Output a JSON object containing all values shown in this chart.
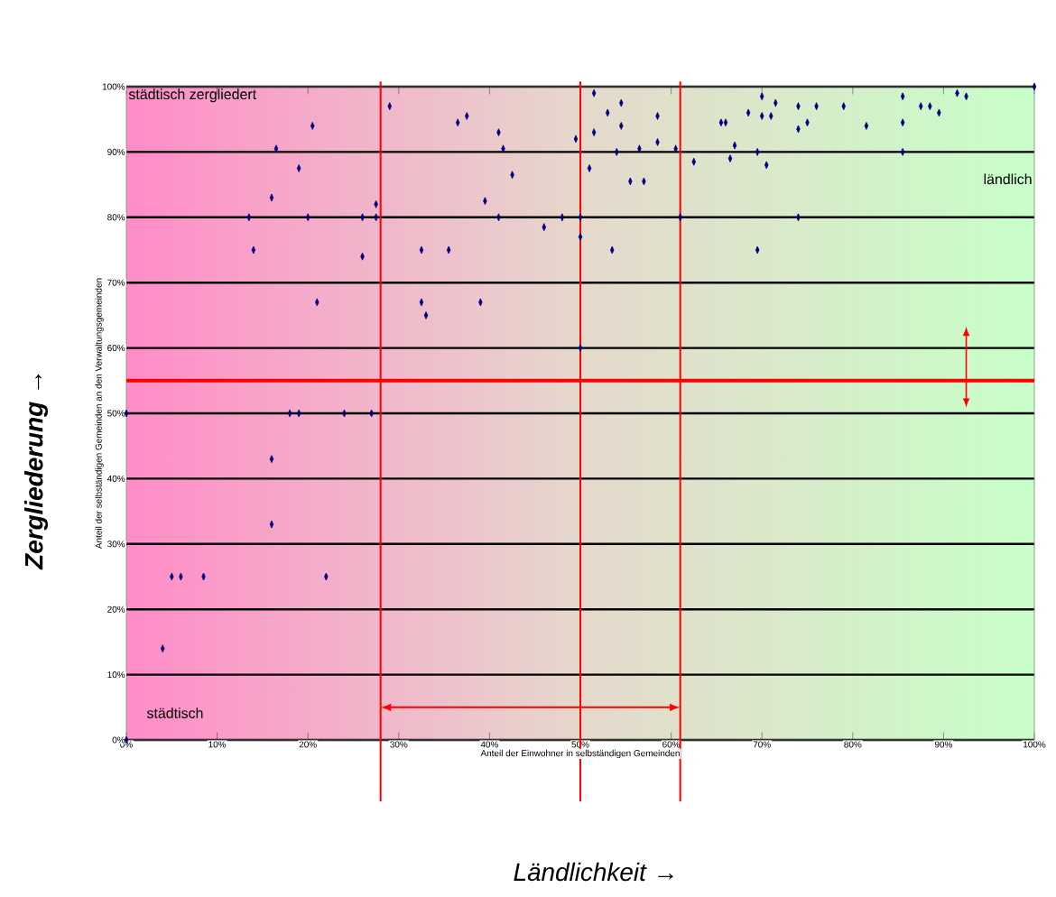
{
  "chart_data": {
    "type": "scatter",
    "xlabel": "Anteil der Einwohner in selbständigen Gemeinden",
    "ylabel": "Anteil der selbständigen Gemeinden an den Verwaltungsgemeinden",
    "annotations": [
      "städtisch zergliedert",
      "ländlich",
      "städtisch",
      "Zergliederung →",
      "Ländlichkeit →"
    ],
    "xlim": [
      0,
      100
    ],
    "ylim": [
      0,
      100
    ],
    "xticks": [
      {
        "value": 0,
        "label": "0%"
      },
      {
        "value": 10,
        "label": "10%"
      },
      {
        "value": 20,
        "label": "20%"
      },
      {
        "value": 30,
        "label": "30%"
      },
      {
        "value": 40,
        "label": "40%"
      },
      {
        "value": 50,
        "label": "50%"
      },
      {
        "value": 60,
        "label": "60%"
      },
      {
        "value": 70,
        "label": "70%"
      },
      {
        "value": 80,
        "label": "80%"
      },
      {
        "value": 90,
        "label": "90%"
      },
      {
        "value": 100,
        "label": "100%"
      }
    ],
    "yticks": [
      {
        "value": 0,
        "label": "0%"
      },
      {
        "value": 10,
        "label": "10%"
      },
      {
        "value": 20,
        "label": "20%"
      },
      {
        "value": 30,
        "label": "30%"
      },
      {
        "value": 40,
        "label": "40%"
      },
      {
        "value": 50,
        "label": "50%"
      },
      {
        "value": 60,
        "label": "60%"
      },
      {
        "value": 70,
        "label": "70%"
      },
      {
        "value": 80,
        "label": "80%"
      },
      {
        "value": 90,
        "label": "90%"
      },
      {
        "value": 100,
        "label": "100%"
      }
    ],
    "grid": "y",
    "marker": "diamond",
    "ref_lines": [
      {
        "axis": "y",
        "value": 55,
        "color": "#ff0000"
      },
      {
        "axis": "x",
        "value": 28,
        "color": "#ff0000"
      },
      {
        "axis": "x",
        "value": 50,
        "color": "#ff0000"
      },
      {
        "axis": "x",
        "value": 61,
        "color": "#ff0000"
      }
    ],
    "series": [
      {
        "color": "#000080",
        "x": [
          29,
          20.5,
          16.5,
          19,
          16,
          13.5,
          20,
          26,
          27.5,
          27.5,
          14,
          26,
          32.5,
          35.5,
          21,
          32.5,
          33,
          39,
          36.5,
          37.5,
          41,
          41.5,
          42.5,
          39.5,
          41,
          46,
          48,
          49.5,
          50,
          50,
          51,
          50,
          0,
          18,
          19,
          24,
          27,
          51.5,
          53,
          54.5,
          54.5,
          51.5,
          54,
          56.5,
          58.5,
          58.5,
          60.5,
          55.5,
          57,
          61,
          74,
          53.5,
          69.5,
          62.5,
          65.5,
          66,
          67,
          66.5,
          68.5,
          69.5,
          70.5,
          70,
          70,
          71,
          71.5,
          74,
          74,
          75,
          76,
          79,
          81.5,
          85.5,
          85.5,
          85.5,
          87.5,
          88.5,
          89.5,
          91.5,
          92.5,
          100,
          16,
          16,
          5,
          6,
          8.5,
          22,
          4,
          0
        ],
        "values": [
          97,
          94,
          90.5,
          87.5,
          83,
          80,
          80,
          80,
          80,
          82,
          75,
          74,
          75,
          75,
          67,
          67,
          65,
          67,
          94.5,
          95.5,
          93,
          90.5,
          86.5,
          82.5,
          80,
          78.5,
          80,
          92,
          80,
          77,
          87.5,
          60,
          50,
          50,
          50,
          50,
          50,
          99,
          96,
          97.5,
          94,
          93,
          90,
          90.5,
          95.5,
          91.5,
          90.5,
          85.5,
          85.5,
          80,
          80,
          75,
          75,
          88.5,
          94.5,
          94.5,
          91,
          89,
          96,
          90,
          88,
          98.5,
          95.5,
          95.5,
          97.5,
          97,
          93.5,
          94.5,
          97,
          97,
          94,
          98.5,
          94.5,
          90,
          97,
          97,
          96,
          99,
          98.5,
          100,
          43,
          33,
          25,
          25,
          25,
          25,
          14,
          0
        ]
      }
    ]
  }
}
